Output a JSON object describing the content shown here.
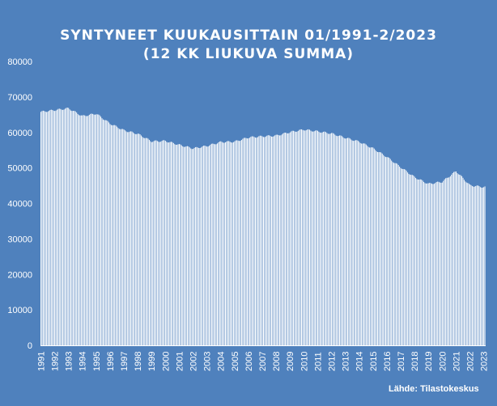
{
  "chart_data": {
    "type": "bar",
    "title": "SYNTYNEET  KUUKAUSITTAIN  01/1991-2/2023",
    "subtitle": "(12 KK LIUKUVA SUMMA)",
    "source": "Lähde: Tilastokeskus",
    "ylim": [
      0,
      80000
    ],
    "y_ticks": [
      "0",
      "10000",
      "20000",
      "30000",
      "40000",
      "50000",
      "60000",
      "70000",
      "80000"
    ],
    "categories": [
      "1991",
      "1992",
      "1993",
      "1994",
      "1995",
      "1996",
      "1997",
      "1998",
      "1999",
      "2000",
      "2001",
      "2002",
      "2003",
      "2004",
      "2005",
      "2006",
      "2007",
      "2008",
      "2009",
      "2010",
      "2011",
      "2012",
      "2013",
      "2014",
      "2015",
      "2016",
      "2017",
      "2018",
      "2019",
      "2020",
      "2021",
      "2022",
      "2023"
    ],
    "values_annual_approx": [
      65800,
      66300,
      66800,
      64600,
      65300,
      62500,
      60600,
      59600,
      57500,
      57600,
      56500,
      55500,
      56200,
      57300,
      57400,
      58600,
      58900,
      59100,
      60100,
      60800,
      60300,
      59700,
      58500,
      57400,
      55500,
      53100,
      50200,
      47400,
      45500,
      46100,
      49100,
      45100,
      44600
    ],
    "grid": false,
    "legend": "none"
  },
  "colors": {
    "background": "#4f81bd",
    "bars": "#ffffff",
    "text": "#ffffff"
  }
}
